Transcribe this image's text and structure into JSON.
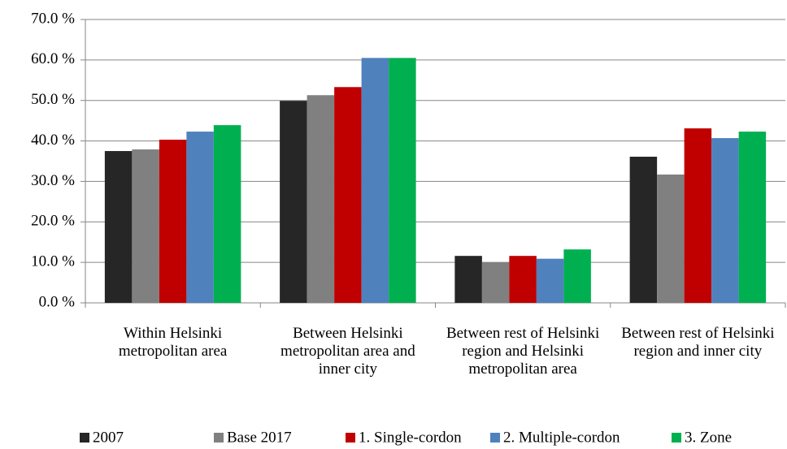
{
  "chart_data": {
    "type": "bar",
    "categories": [
      "Within Helsinki metropolitan area",
      "Between Helsinki metropolitan area and inner city",
      "Between rest of Helsinki region and Helsinki metropolitan area",
      "Between rest of Helsinki region and inner city"
    ],
    "series": [
      {
        "name": "2007",
        "color": "#262626",
        "values": [
          37.5,
          49.9,
          11.6,
          36.1
        ]
      },
      {
        "name": "Base 2017",
        "color": "#808080",
        "values": [
          37.9,
          51.3,
          10.0,
          31.7
        ]
      },
      {
        "name": "1. Single-cordon",
        "color": "#c00000",
        "values": [
          40.3,
          53.3,
          11.6,
          43.1
        ]
      },
      {
        "name": "2. Multiple-cordon",
        "color": "#4f81bd",
        "values": [
          42.3,
          60.5,
          10.9,
          40.7
        ]
      },
      {
        "name": "3. Zone",
        "color": "#00b050",
        "values": [
          43.9,
          60.5,
          13.2,
          42.3
        ]
      }
    ],
    "ylim": [
      0,
      70
    ],
    "yticks": [
      {
        "value": 0,
        "label": "0.0 %"
      },
      {
        "value": 10,
        "label": "10.0 %"
      },
      {
        "value": 20,
        "label": "20.0 %"
      },
      {
        "value": 30,
        "label": "30.0 %"
      },
      {
        "value": 40,
        "label": "40.0 %"
      },
      {
        "value": 50,
        "label": "50.0 %"
      },
      {
        "value": 60,
        "label": "60.0 %"
      },
      {
        "value": 70,
        "label": "70.0 %"
      }
    ],
    "grid": true,
    "legend": "bottom"
  }
}
